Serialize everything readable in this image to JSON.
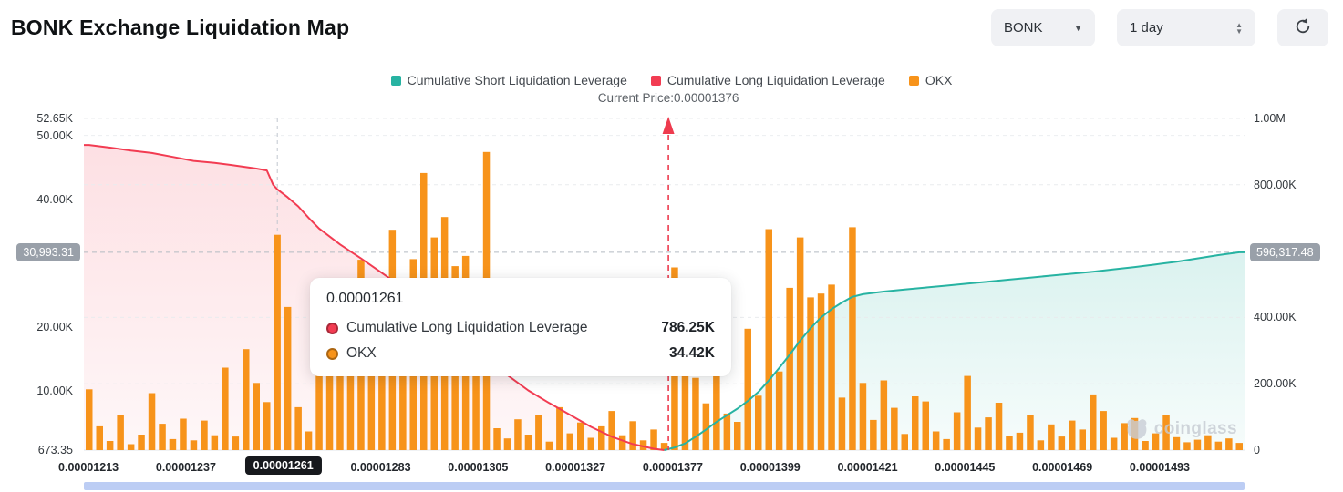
{
  "header": {
    "title": "BONK Exchange Liquidation Map"
  },
  "controls": {
    "symbol": "BONK",
    "interval": "1 day",
    "refresh_icon": "refresh-circular-arrow"
  },
  "legend": {
    "items": [
      {
        "label": "Cumulative Short Liquidation Leverage",
        "color": "#27b3a2"
      },
      {
        "label": "Cumulative Long Liquidation Leverage",
        "color": "#f23c52"
      },
      {
        "label": "OKX",
        "color": "#f7931a"
      }
    ]
  },
  "tooltip": {
    "title": "0.00001261",
    "rows": [
      {
        "label": "Cumulative Long Liquidation Leverage",
        "value": "786.25K",
        "color": "#f23c52"
      },
      {
        "label": "OKX",
        "value": "34.42K",
        "color": "#f7931a"
      }
    ]
  },
  "watermark": {
    "text": "coinglass",
    "icon": "coinglass-bear-icon"
  },
  "chart_data": {
    "type": "bar",
    "title": "BONK Exchange Liquidation Map",
    "current_price": {
      "text": "Current Price:0.00001376",
      "value": "0.00001376",
      "x_index": 55.4
    },
    "crosshair": {
      "x_index": 18,
      "y_value_right": 596317.48
    },
    "x_axis": {
      "labels": [
        "0.00001213",
        "0.00001237",
        "0.00001261",
        "0.00001283",
        "0.00001305",
        "0.00001327",
        "0.00001377",
        "0.00001399",
        "0.00001421",
        "0.00001445",
        "0.00001469",
        "0.00001493"
      ],
      "highlight_index": 2
    },
    "left_axis": {
      "min": 673.35,
      "max": 52650,
      "ticks": [
        {
          "label": "52.65K",
          "value": 52650
        },
        {
          "label": "50.00K",
          "value": 50000
        },
        {
          "label": "40.00K",
          "value": 40000
        },
        {
          "label": "20.00K",
          "value": 20000
        },
        {
          "label": "10.00K",
          "value": 10000
        },
        {
          "label": "673.35",
          "value": 673.35
        }
      ],
      "gridlines": [
        50000
      ],
      "badge": {
        "label": "30,993.31",
        "value": 30993.31
      }
    },
    "right_axis": {
      "min": 0,
      "max": 1000000,
      "ticks": [
        {
          "label": "1.00M",
          "value": 1000000
        },
        {
          "label": "800.00K",
          "value": 800000
        },
        {
          "label": "400.00K",
          "value": 400000
        },
        {
          "label": "200.00K",
          "value": 200000
        },
        {
          "label": "0",
          "value": 0
        }
      ],
      "gridlines": [
        1000000,
        800000,
        400000,
        200000
      ],
      "badge": {
        "label": "596,317.48",
        "value": 596317.48
      }
    },
    "bars": {
      "name": "OKX",
      "color": "#f7931a",
      "values_k": [
        10.2,
        4.4,
        2.1,
        6.2,
        1.6,
        3.1,
        9.6,
        4.8,
        2.4,
        5.6,
        2.2,
        5.3,
        3.0,
        13.6,
        2.8,
        16.5,
        11.2,
        8.2,
        34.42,
        23.1,
        7.4,
        3.6,
        15.0,
        20.0,
        25.5,
        18.0,
        30.5,
        22.0,
        16.0,
        35.2,
        20.0,
        30.6,
        44.1,
        34.0,
        37.2,
        29.5,
        31.1,
        18.0,
        47.4,
        4.1,
        2.5,
        5.5,
        3.1,
        6.2,
        2.0,
        7.4,
        3.3,
        5.0,
        2.6,
        4.4,
        6.8,
        3.0,
        5.2,
        2.2,
        3.9,
        1.8,
        29.3,
        26.4,
        12.0,
        8.0,
        15.0,
        6.4,
        5.1,
        19.7,
        9.2,
        35.3,
        13.0,
        26.1,
        34.0,
        24.6,
        25.2,
        26.6,
        8.9,
        35.6,
        11.2,
        5.4,
        11.6,
        7.3,
        3.2,
        9.1,
        8.3,
        3.6,
        2.4,
        6.6,
        12.3,
        4.2,
        5.8,
        8.1,
        2.9,
        3.4,
        6.2,
        2.2,
        4.7,
        2.8,
        5.3,
        3.9,
        9.4,
        6.8,
        2.6,
        4.9,
        5.7,
        2.1,
        3.3,
        6.1,
        2.7,
        1.9,
        2.3,
        3.0,
        2.0,
        2.5,
        1.8
      ]
    },
    "long_series": {
      "name": "Cumulative Long Liquidation Leverage",
      "color": "#f23c52",
      "extend_left": true,
      "extend_right": false,
      "points": [
        [
          0,
          920000
        ],
        [
          2,
          912000
        ],
        [
          4,
          903000
        ],
        [
          6,
          896000
        ],
        [
          8,
          884000
        ],
        [
          10,
          872000
        ],
        [
          12,
          866000
        ],
        [
          14,
          858000
        ],
        [
          16,
          849000
        ],
        [
          17,
          843000
        ],
        [
          17.6,
          800000
        ],
        [
          18,
          786250
        ],
        [
          19,
          762000
        ],
        [
          20,
          735000
        ],
        [
          21,
          700000
        ],
        [
          22,
          668000
        ],
        [
          24,
          620000
        ],
        [
          26,
          578000
        ],
        [
          28,
          534000
        ],
        [
          30,
          490000
        ],
        [
          32,
          445000
        ],
        [
          34,
          395000
        ],
        [
          36,
          340000
        ],
        [
          38,
          280000
        ],
        [
          40,
          226000
        ],
        [
          42,
          180000
        ],
        [
          44,
          142000
        ],
        [
          46,
          106000
        ],
        [
          48,
          70000
        ],
        [
          50,
          40000
        ],
        [
          52,
          18000
        ],
        [
          54,
          4000
        ],
        [
          55,
          0
        ]
      ]
    },
    "short_series": {
      "name": "Cumulative Short Liquidation Leverage",
      "color": "#27b3a2",
      "extend_left": false,
      "extend_right": true,
      "points": [
        [
          55,
          0
        ],
        [
          56,
          8000
        ],
        [
          57,
          20000
        ],
        [
          58,
          40000
        ],
        [
          59,
          62000
        ],
        [
          60,
          85000
        ],
        [
          61,
          105000
        ],
        [
          62,
          125000
        ],
        [
          63,
          148000
        ],
        [
          64,
          175000
        ],
        [
          65,
          210000
        ],
        [
          66,
          248000
        ],
        [
          67,
          288000
        ],
        [
          68,
          330000
        ],
        [
          69,
          368000
        ],
        [
          70,
          400000
        ],
        [
          71,
          425000
        ],
        [
          72,
          445000
        ],
        [
          73,
          462000
        ],
        [
          74,
          470000
        ],
        [
          76,
          478000
        ],
        [
          78,
          484000
        ],
        [
          80,
          490000
        ],
        [
          82,
          496000
        ],
        [
          84,
          502000
        ],
        [
          86,
          508000
        ],
        [
          88,
          514000
        ],
        [
          90,
          520000
        ],
        [
          92,
          526000
        ],
        [
          94,
          532000
        ],
        [
          96,
          538000
        ],
        [
          98,
          545000
        ],
        [
          100,
          552000
        ],
        [
          102,
          560000
        ],
        [
          104,
          568000
        ],
        [
          106,
          578000
        ],
        [
          108,
          588000
        ],
        [
          110,
          596317.48
        ]
      ]
    }
  }
}
